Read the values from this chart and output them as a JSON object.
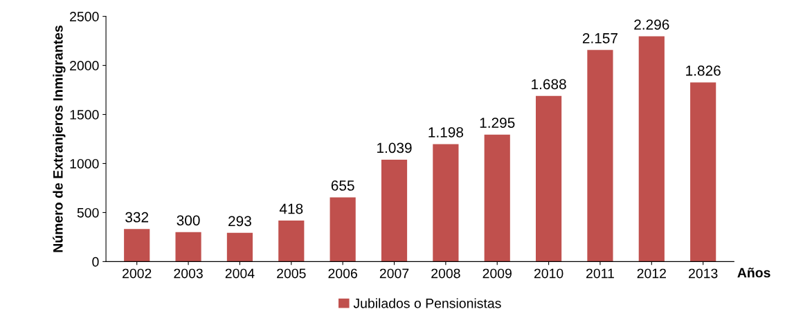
{
  "chart_data": {
    "type": "bar",
    "ylabel": "Número de Extranjeros Inmigrantes",
    "xlabel": "Años",
    "categories": [
      "2002",
      "2003",
      "2004",
      "2005",
      "2006",
      "2007",
      "2008",
      "2009",
      "2010",
      "2011",
      "2012",
      "2013"
    ],
    "series": [
      {
        "name": "Jubilados o Pensionistas",
        "color": "#c0504d",
        "values": [
          332,
          300,
          293,
          418,
          655,
          1039,
          1198,
          1295,
          1688,
          2157,
          2296,
          1826
        ],
        "value_labels": [
          "332",
          "300",
          "293",
          "418",
          "655",
          "1.039",
          "1.198",
          "1.295",
          "1.688",
          "2.157",
          "2.296",
          "1.826"
        ]
      }
    ],
    "ylim": [
      0,
      2500
    ],
    "yticks": [
      0,
      500,
      1000,
      1500,
      2000,
      2500
    ],
    "grid": false,
    "legend": "bottom"
  }
}
